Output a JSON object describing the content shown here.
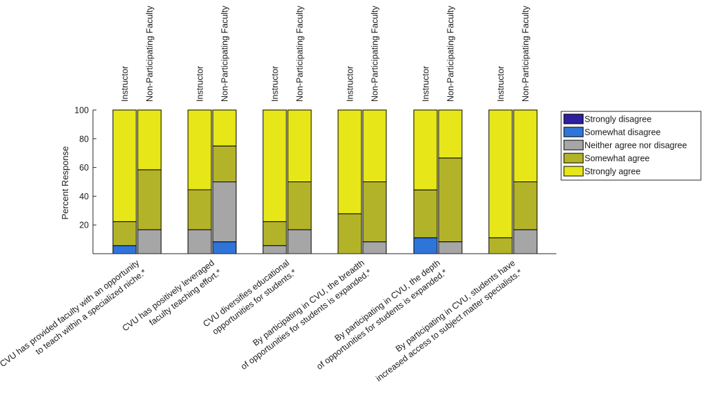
{
  "chart_data": {
    "type": "bar",
    "stacked": true,
    "title": "",
    "xlabel": "",
    "ylabel": "Percent Response",
    "ylim": [
      0,
      100
    ],
    "yticks": [
      20,
      40,
      60,
      80,
      100
    ],
    "legend_position": "top-right",
    "subgroup_labels": [
      "Instructor",
      "Non-Participating Faculty"
    ],
    "categories": [
      [
        "CVU has provided faculty with an opportunity",
        "to teach within a specialized niche.*"
      ],
      [
        "CVU has positively leveraged",
        "faculty teaching effort.*"
      ],
      [
        "CVU diversifies educational",
        "opportunities for students.*"
      ],
      [
        "By participating in CVU, the breadth",
        "of opportunities for students is expanded.*"
      ],
      [
        "By participating in CVU, the depth",
        "of opportunities for students is expanded.*"
      ],
      [
        "By participating in CVU, students have",
        "increased access to subject matter specialists.*"
      ]
    ],
    "series": [
      {
        "name": "Strongly disagree",
        "color": "#2e1f9e",
        "values": [
          [
            0,
            0
          ],
          [
            0,
            0
          ],
          [
            0,
            0
          ],
          [
            0,
            0
          ],
          [
            0,
            0
          ],
          [
            0,
            0
          ]
        ]
      },
      {
        "name": "Somewhat disagree",
        "color": "#2f74d9",
        "values": [
          [
            5.6,
            0
          ],
          [
            0,
            8.3
          ],
          [
            0,
            0
          ],
          [
            0,
            0
          ],
          [
            11.1,
            0
          ],
          [
            0,
            0
          ]
        ]
      },
      {
        "name": "Neither agree nor disagree",
        "color": "#a6a6a6",
        "values": [
          [
            0,
            16.7
          ],
          [
            16.7,
            41.7
          ],
          [
            5.6,
            16.7
          ],
          [
            0,
            8.3
          ],
          [
            0,
            8.3
          ],
          [
            0,
            16.7
          ]
        ]
      },
      {
        "name": "Somewhat agree",
        "color": "#b3b32a",
        "values": [
          [
            16.7,
            41.7
          ],
          [
            27.8,
            25.0
          ],
          [
            16.7,
            33.3
          ],
          [
            27.8,
            41.7
          ],
          [
            33.3,
            58.3
          ],
          [
            11.1,
            33.3
          ]
        ]
      },
      {
        "name": "Strongly agree",
        "color": "#e6e619",
        "values": [
          [
            77.7,
            41.6
          ],
          [
            55.5,
            25.0
          ],
          [
            77.7,
            50.0
          ],
          [
            72.2,
            50.0
          ],
          [
            55.6,
            33.4
          ],
          [
            88.9,
            50.0
          ]
        ]
      }
    ]
  }
}
